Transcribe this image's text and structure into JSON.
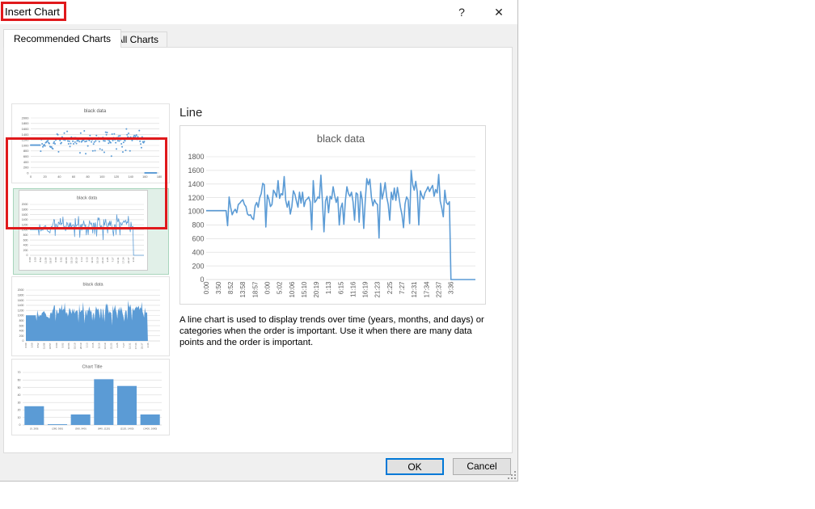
{
  "window": {
    "title": "Insert Chart",
    "help_label": "?",
    "close_label": "✕"
  },
  "tabs": [
    {
      "label": "Recommended Charts",
      "active": true
    },
    {
      "label": "All Charts",
      "active": false
    }
  ],
  "preview": {
    "heading": "Line",
    "description_lines": [
      "A line chart is used to display trends over time (years, months, and days) or",
      "categories when the order is important. Use it when there are many data",
      "points and the order is important."
    ]
  },
  "buttons": {
    "ok": "OK",
    "cancel": "Cancel"
  },
  "colors": {
    "accent_line": "#5B9BD5",
    "selected_thumb_bg": "#E1F0E8",
    "selected_thumb_border": "#A8D5BC",
    "annotation_red": "#E0191C",
    "ok_focus_border": "#0078D7",
    "chart_text": "#595959",
    "grid": "#D9D9D9",
    "axis": "#BFBFBF"
  },
  "chart_data": [
    {
      "id": "preview-line",
      "type": "line",
      "title": "black data",
      "ylim": [
        0,
        1800
      ],
      "ytick_step": 200,
      "x_label_every": 8,
      "x_labels": [
        "0:00",
        "3:50",
        "8:52",
        "13:58",
        "18:57",
        "0:00",
        "5:02",
        "10:06",
        "15:10",
        "20:19",
        "1:13",
        "6:15",
        "11:16",
        "16:19",
        "21:23",
        "2:25",
        "7:27",
        "12:31",
        "17:34",
        "22:37",
        "3:36"
      ],
      "values": [
        1010,
        1010,
        1010,
        1010,
        1010,
        1010,
        1010,
        1010,
        1010,
        1010,
        1010,
        1010,
        1010,
        1010,
        790,
        1210,
        1060,
        950,
        1000,
        1030,
        980,
        1100,
        1120,
        1150,
        1170,
        1100,
        1070,
        960,
        940,
        950,
        900,
        880,
        1080,
        1130,
        1060,
        1200,
        1260,
        1410,
        1390,
        770,
        1240,
        1180,
        1070,
        1100,
        1310,
        1270,
        1210,
        1450,
        1190,
        1260,
        1240,
        1510,
        1160,
        1060,
        1150,
        960,
        1070,
        1300,
        1250,
        1150,
        1060,
        1280,
        1120,
        1280,
        1070,
        1160,
        1180,
        1210,
        1140,
        730,
        1450,
        1130,
        1160,
        1210,
        1190,
        1530,
        1140,
        700,
        1150,
        1220,
        980,
        1220,
        1180,
        1360,
        1230,
        1130,
        1210,
        800,
        1050,
        1120,
        810,
        1160,
        1360,
        1260,
        1220,
        1280,
        1140,
        870,
        1270,
        1250,
        840,
        1290,
        1170,
        750,
        1160,
        1480,
        1390,
        1470,
        1210,
        1080,
        1170,
        1120,
        1100,
        610,
        1410,
        1180,
        1280,
        1420,
        1210,
        1100,
        870,
        1280,
        1170,
        1340,
        1160,
        1350,
        1210,
        1060,
        950,
        760,
        1110,
        1210,
        1170,
        820,
        1600,
        1390,
        1310,
        1440,
        1280,
        800,
        1300,
        1230,
        1180,
        1270,
        1310,
        1360,
        1290,
        1340,
        1380,
        1220,
        1320,
        1270,
        1540,
        1150,
        1050,
        920,
        1310,
        1130,
        1100,
        1140,
        0,
        0,
        0,
        0,
        0,
        0,
        0,
        0,
        0,
        0,
        0,
        0,
        0,
        0,
        0,
        0,
        0
      ]
    },
    {
      "id": "thumb-scatter",
      "type": "scatter",
      "title": "black data",
      "ylim": [
        0,
        2000
      ],
      "ytick_step": 200,
      "xlim": [
        0,
        180
      ],
      "xtick_step": 20,
      "values_from": 0
    },
    {
      "id": "thumb-line",
      "type": "line",
      "title": "black data",
      "ylim": [
        0,
        2000
      ],
      "ytick_step": 200,
      "x_labels_from_source": true,
      "values_from": 0
    },
    {
      "id": "thumb-area",
      "type": "area",
      "title": "black data",
      "ylim": [
        0,
        2000
      ],
      "ytick_step": 200,
      "x_labels_from_source": true,
      "values_from": 0
    },
    {
      "id": "thumb-histogram",
      "type": "bar",
      "title": "Chart Title",
      "categories": [
        "[0, 280]",
        "(280, 560]",
        "(560, 840]",
        "(840, 1120]",
        "(1120, 1400]",
        "(1400, 1680]"
      ],
      "values": [
        25,
        1,
        14,
        61,
        52,
        14
      ],
      "ylim": [
        0,
        70
      ],
      "ytick_step": 10
    }
  ]
}
